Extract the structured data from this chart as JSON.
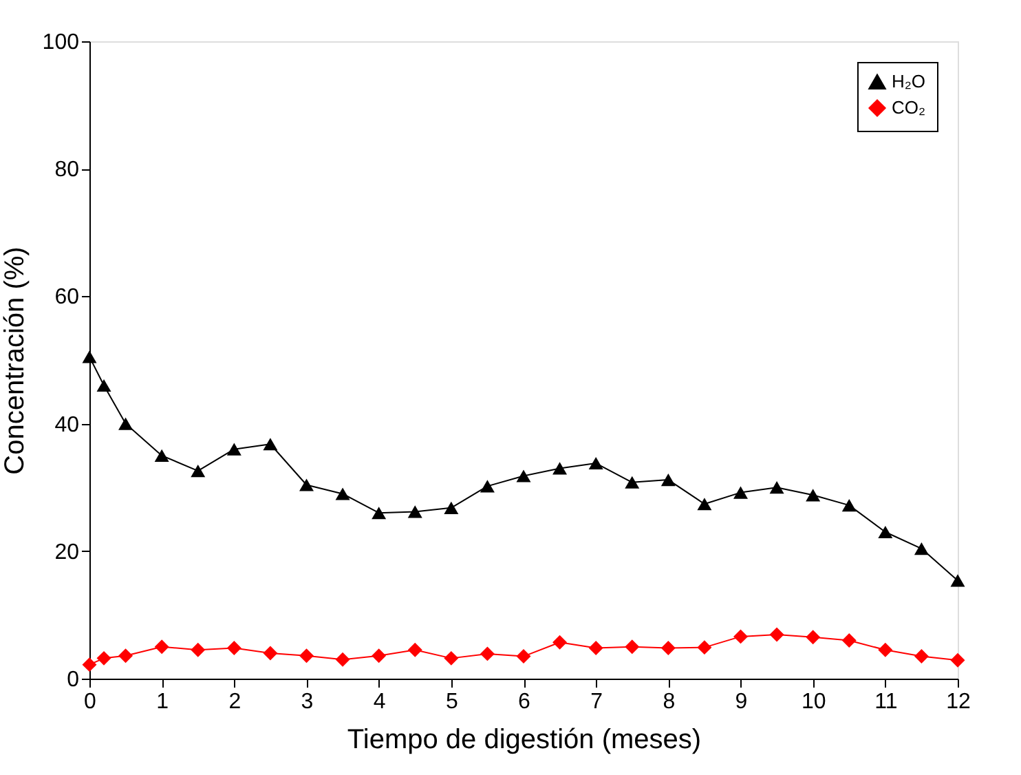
{
  "chart_data": {
    "type": "line",
    "xlabel": "Tiempo de digestión (meses)",
    "ylabel": "Concentración (%)",
    "x": [
      0,
      0.2,
      0.5,
      1,
      1.5,
      2,
      2.5,
      3,
      3.5,
      4,
      4.5,
      5,
      5.5,
      6,
      6.5,
      7,
      7.5,
      8,
      8.5,
      9,
      9.5,
      10,
      10.5,
      11,
      11.5,
      12
    ],
    "series": [
      {
        "name": "H₂O",
        "color": "#000000",
        "marker": "triangle",
        "values": [
          50.5,
          46,
          40,
          35,
          32.6,
          36,
          36.8,
          30.4,
          29,
          26,
          26.2,
          26.8,
          30.2,
          31.8,
          33,
          33.8,
          30.8,
          31.2,
          27.4,
          29.2,
          30,
          28.8,
          27.2,
          23,
          20.4,
          15.4
        ]
      },
      {
        "name": "CO₂",
        "color": "#ff0000",
        "marker": "diamond",
        "values": [
          2.2,
          3.2,
          3.6,
          5,
          4.5,
          4.8,
          4,
          3.6,
          3,
          3.6,
          4.5,
          3.2,
          3.9,
          3.5,
          5.7,
          4.8,
          5,
          4.8,
          4.9,
          6.6,
          6.9,
          6.5,
          6,
          4.5,
          3.5,
          2.9
        ]
      }
    ],
    "xlim": [
      0,
      12
    ],
    "xticks": [
      0,
      1,
      2,
      3,
      4,
      5,
      6,
      7,
      8,
      9,
      10,
      11,
      12
    ],
    "ylim": [
      0,
      100
    ],
    "yticks": [
      0,
      20,
      40,
      60,
      80,
      100
    ],
    "grid": false,
    "legend": "top right",
    "line_style": "solid"
  }
}
